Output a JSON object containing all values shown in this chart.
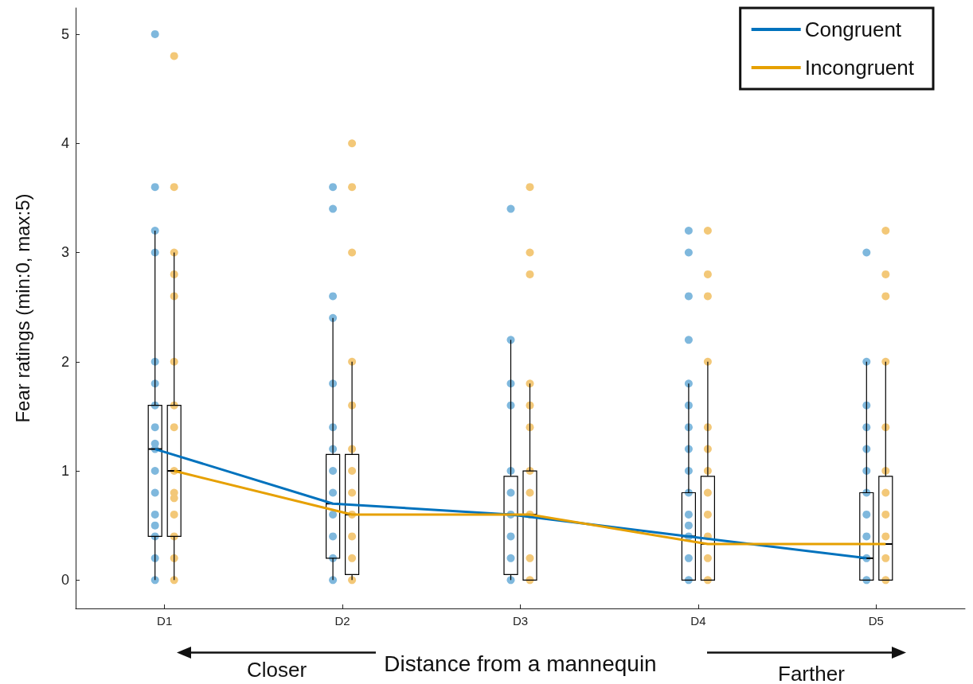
{
  "chart_data": {
    "type": "box",
    "xlabel": "Distance from a mannequin",
    "ylabel": "Fear ratings (min:0, max:5)",
    "categories": [
      "D1",
      "D2",
      "D3",
      "D4",
      "D5"
    ],
    "ylim": [
      -0.26,
      5.24
    ],
    "yticks": [
      0,
      1,
      2,
      3,
      4,
      5
    ],
    "grid": false,
    "legend": "top right",
    "annotations": [
      "Closer",
      "Farther"
    ],
    "series": [
      {
        "type": "scatter",
        "color": "#7fb8dd",
        "x": [
          "D1",
          "D1",
          "D1",
          "D1",
          "D1",
          "D1",
          "D1",
          "D1",
          "D1",
          "D1",
          "D1",
          "D1",
          "D1",
          "D1",
          "D1",
          "D1",
          "D1",
          "D2",
          "D2",
          "D2",
          "D2",
          "D2",
          "D2",
          "D2",
          "D2",
          "D2",
          "D2",
          "D2",
          "D2",
          "D2",
          "D3",
          "D3",
          "D3",
          "D3",
          "D3",
          "D3",
          "D3",
          "D3",
          "D3",
          "D3",
          "D4",
          "D4",
          "D4",
          "D4",
          "D4",
          "D4",
          "D4",
          "D4",
          "D4",
          "D4",
          "D4",
          "D4",
          "D4",
          "D4",
          "D4",
          "D5",
          "D5",
          "D5",
          "D5",
          "D5",
          "D5",
          "D5",
          "D5",
          "D5",
          "D5",
          "D5"
        ],
        "values": [
          0,
          0.2,
          0.4,
          0.5,
          0.6,
          0.8,
          1.0,
          1.2,
          1.25,
          1.4,
          1.6,
          1.8,
          2.0,
          3.0,
          3.2,
          3.6,
          5.0,
          0,
          0.2,
          0.4,
          0.6,
          0.8,
          1.0,
          1.2,
          1.4,
          1.8,
          2.4,
          2.6,
          3.4,
          3.6,
          0,
          0.2,
          0.4,
          0.6,
          0.8,
          1.0,
          1.6,
          1.8,
          2.2,
          3.4,
          0,
          0.2,
          0.4,
          0.5,
          0.6,
          0.8,
          1.0,
          1.2,
          1.4,
          1.6,
          1.8,
          2.2,
          2.6,
          3.0,
          3.2,
          0,
          0.2,
          0.4,
          0.6,
          0.8,
          1.0,
          1.2,
          1.4,
          1.6,
          2.0,
          3.0
        ]
      },
      {
        "type": "scatter",
        "color": "#f3c878",
        "x": [
          "D1",
          "D1",
          "D1",
          "D1",
          "D1",
          "D1",
          "D1",
          "D1",
          "D1",
          "D1",
          "D1",
          "D1",
          "D1",
          "D1",
          "D1",
          "D2",
          "D2",
          "D2",
          "D2",
          "D2",
          "D2",
          "D2",
          "D2",
          "D2",
          "D2",
          "D2",
          "D2",
          "D3",
          "D3",
          "D3",
          "D3",
          "D3",
          "D3",
          "D3",
          "D3",
          "D3",
          "D3",
          "D3",
          "D4",
          "D4",
          "D4",
          "D4",
          "D4",
          "D4",
          "D4",
          "D4",
          "D4",
          "D4",
          "D4",
          "D4",
          "D5",
          "D5",
          "D5",
          "D5",
          "D5",
          "D5",
          "D5",
          "D5",
          "D5",
          "D5",
          "D5"
        ],
        "values": [
          0,
          0.2,
          0.4,
          0.6,
          0.75,
          0.8,
          1.0,
          1.4,
          1.6,
          2.0,
          2.6,
          2.8,
          3.0,
          3.6,
          4.8,
          0,
          0.2,
          0.4,
          0.6,
          0.8,
          1.0,
          1.2,
          1.6,
          2.0,
          3.0,
          3.6,
          4.0,
          0,
          0.2,
          0.6,
          0.8,
          1.0,
          1.4,
          1.6,
          1.8,
          2.8,
          3.0,
          3.6,
          0,
          0.2,
          0.4,
          0.6,
          0.8,
          1.0,
          1.2,
          1.4,
          2.0,
          2.6,
          2.8,
          3.2,
          0,
          0.2,
          0.4,
          0.6,
          0.8,
          1.0,
          1.4,
          2.0,
          2.6,
          2.8,
          3.2
        ]
      },
      {
        "color": "#000000",
        "boxes": [
          {
            "low": 0,
            "q1": 0.4,
            "median": 1.2,
            "q3": 1.6,
            "high": 3.2
          },
          {
            "low": 0,
            "q1": 0.2,
            "median": 0.7,
            "q3": 1.15,
            "high": 2.4
          },
          {
            "low": 0,
            "q1": 0.05,
            "median": 0.6,
            "q3": 0.95,
            "high": 2.2
          },
          {
            "low": 0,
            "q1": 0,
            "median": 0.4,
            "q3": 0.8,
            "high": 1.8
          },
          {
            "low": 0,
            "q1": 0,
            "median": 0.2,
            "q3": 0.8,
            "high": 2.0
          }
        ]
      },
      {
        "color": "#000000",
        "boxes": [
          {
            "low": 0,
            "q1": 0.4,
            "median": 1.0,
            "q3": 1.6,
            "high": 3.0
          },
          {
            "low": 0,
            "q1": 0.05,
            "median": 0.6,
            "q3": 1.15,
            "high": 2.0
          },
          {
            "low": 0,
            "q1": 0,
            "median": 0.6,
            "q3": 1.0,
            "high": 1.8
          },
          {
            "low": 0,
            "q1": 0,
            "median": 0.33,
            "q3": 0.95,
            "high": 2.0
          },
          {
            "low": 0,
            "q1": 0,
            "median": 0.33,
            "q3": 0.95,
            "high": 2.0
          }
        ]
      },
      {
        "type": "line",
        "name": "Congruent",
        "color": "#0072bd",
        "values": [
          1.2,
          0.7,
          0.6,
          0.4,
          0.2
        ]
      },
      {
        "type": "line",
        "name": "Incongruent",
        "color": "#e6a000",
        "values": [
          1.0,
          0.6,
          0.6,
          0.33,
          0.33
        ]
      }
    ]
  }
}
